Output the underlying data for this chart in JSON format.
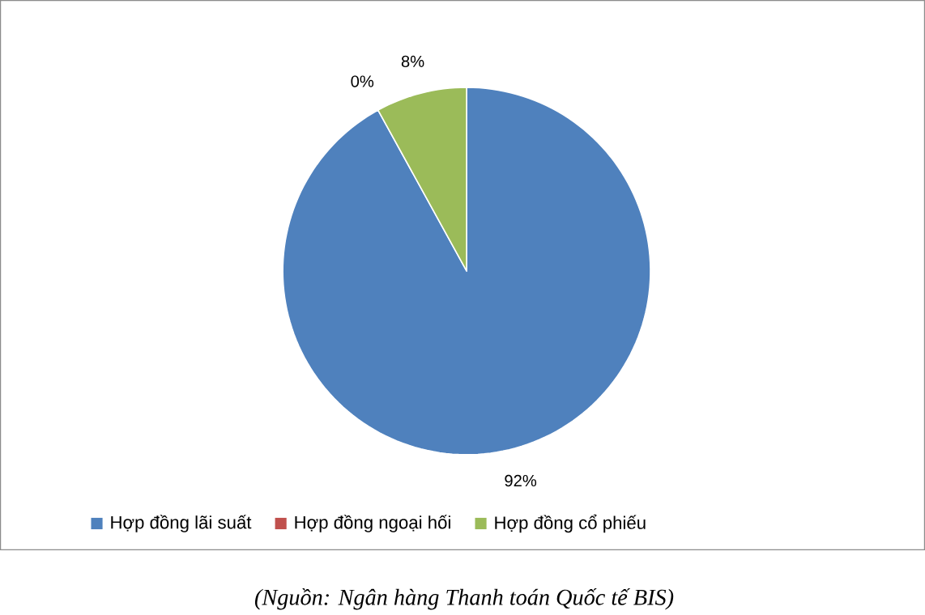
{
  "chart_data": {
    "type": "pie",
    "categories": [
      "Hợp đồng lãi suất",
      "Hợp đồng ngoại hối",
      "Hợp đồng cổ phiếu"
    ],
    "values": [
      92,
      0,
      8
    ],
    "colors": [
      "#4f81bd",
      "#c0504d",
      "#9bbb59"
    ],
    "value_labels": [
      "92%",
      "0%",
      "8%"
    ],
    "legend": "bottom",
    "annotations": [
      "(Nguồn: Ngân hàng Thanh toán Quốc tế BIS)"
    ]
  }
}
